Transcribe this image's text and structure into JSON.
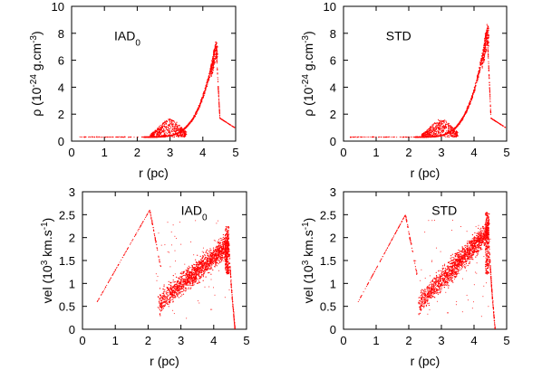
{
  "colors": {
    "points": "#ff0000",
    "axes": "#000000",
    "background": "#ffffff"
  },
  "chart_data": [
    {
      "type": "scatter",
      "annotation": {
        "main": "IAD",
        "sub": "0"
      },
      "xlabel": "r (pc)",
      "ylabel": {
        "pre": "ρ (10",
        "sup1": "-24",
        "mid": " g.cm",
        "sup2": "-3",
        "post": ")"
      },
      "xlim": [
        0,
        5
      ],
      "ylim": [
        0,
        10
      ],
      "xticks": [
        0,
        1,
        2,
        3,
        4,
        5
      ],
      "yticks": [
        0,
        2,
        4,
        6,
        8,
        10
      ],
      "profile": "density",
      "peak": {
        "x": 4.4,
        "y": 7.2
      }
    },
    {
      "type": "scatter",
      "annotation": {
        "main": "STD",
        "sub": ""
      },
      "xlabel": "r (pc)",
      "ylabel": {
        "pre": "ρ (10",
        "sup1": "-24",
        "mid": " g.cm",
        "sup2": "-3",
        "post": ")"
      },
      "xlim": [
        0,
        5
      ],
      "ylim": [
        0,
        10
      ],
      "xticks": [
        0,
        1,
        2,
        3,
        4,
        5
      ],
      "yticks": [
        0,
        2,
        4,
        6,
        8,
        10
      ],
      "profile": "density",
      "peak": {
        "x": 4.4,
        "y": 8.3
      }
    },
    {
      "type": "scatter",
      "annotation": {
        "main": "IAD",
        "sub": "0"
      },
      "xlabel": "r (pc)",
      "ylabel": {
        "pre": "vel (10",
        "sup1": "3",
        "mid": " km.s",
        "sup2": "-1",
        "post": ")"
      },
      "xlim": [
        0,
        5
      ],
      "ylim": [
        0,
        3
      ],
      "xticks": [
        0,
        1,
        2,
        3,
        4,
        5
      ],
      "yticks": [
        0,
        0.5,
        1,
        1.5,
        2,
        2.5,
        3
      ],
      "profile": "velocity",
      "ramp_end": {
        "x": 2.05,
        "y": 2.6
      },
      "shell": {
        "x": 4.45,
        "y": 2.15
      }
    },
    {
      "type": "scatter",
      "annotation": {
        "main": "STD",
        "sub": ""
      },
      "xlabel": "r (pc)",
      "ylabel": {
        "pre": "vel (10",
        "sup1": "3",
        "mid": " km.s",
        "sup2": "-1",
        "post": ")"
      },
      "xlim": [
        0,
        5
      ],
      "ylim": [
        0,
        3
      ],
      "xticks": [
        0,
        1,
        2,
        3,
        4,
        5
      ],
      "yticks": [
        0,
        0.5,
        1,
        1.5,
        2,
        2.5,
        3
      ],
      "profile": "velocity",
      "ramp_end": {
        "x": 1.9,
        "y": 2.5
      },
      "shell": {
        "x": 4.45,
        "y": 2.45
      }
    }
  ]
}
